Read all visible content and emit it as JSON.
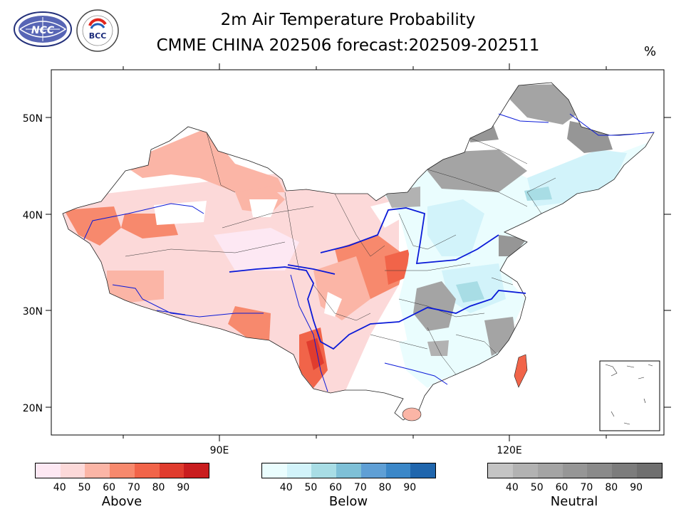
{
  "header": {
    "title_line1": "2m Air Temperature Probability",
    "title_line2": "CMME CHINA 202506 forecast:202509-202511",
    "unit": "%"
  },
  "logos": {
    "ncc": "NCC",
    "bcc": "BCC"
  },
  "axes": {
    "lat_labels": [
      "50N",
      "40N",
      "30N",
      "20N"
    ],
    "lon_labels": [
      "90E",
      "120E"
    ]
  },
  "legend": {
    "ticks": [
      "40",
      "50",
      "60",
      "70",
      "80",
      "90"
    ],
    "above": {
      "label": "Above",
      "colors": [
        "#fde8f3",
        "#fcd9d9",
        "#fbb5a6",
        "#f7896d",
        "#f16449",
        "#e03c2e",
        "#c91d1f"
      ]
    },
    "below": {
      "label": "Below",
      "colors": [
        "#eafdfe",
        "#d2f3fa",
        "#a8dde5",
        "#7ec0d7",
        "#5f9fd5",
        "#3b87c8",
        "#2066ad"
      ]
    },
    "neutral": {
      "label": "Neutral",
      "colors": [
        "#c4c4c4",
        "#b2b2b2",
        "#a4a4a4",
        "#969696",
        "#8a8a8a",
        "#7c7c7c",
        "#6f6f6f"
      ]
    }
  }
}
